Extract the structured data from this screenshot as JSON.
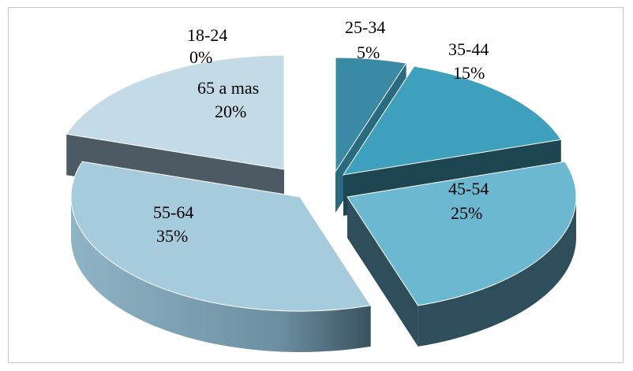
{
  "chart_data": {
    "type": "pie",
    "style": "3d-exploded",
    "title": "",
    "legend": "none",
    "categories": [
      "18-24",
      "25-34",
      "35-44",
      "45-54",
      "55-64",
      "65 a mas"
    ],
    "values": [
      0,
      5,
      15,
      25,
      35,
      20
    ],
    "labels": [
      {
        "category": "18-24",
        "percent": "0%"
      },
      {
        "category": "25-34",
        "percent": "5%"
      },
      {
        "category": "35-44",
        "percent": "15%"
      },
      {
        "category": "45-54",
        "percent": "25%"
      },
      {
        "category": "55-64",
        "percent": "35%"
      },
      {
        "category": "65 a mas",
        "percent": "20%"
      }
    ],
    "colors": {
      "18-24": "#2f7f9c",
      "25-34": "#3a8aa6",
      "35-44": "#3fa0bd",
      "45-54": "#6db8d1",
      "55-64": "#a6cbdc",
      "65 a mas": "#c3dbe6"
    }
  }
}
